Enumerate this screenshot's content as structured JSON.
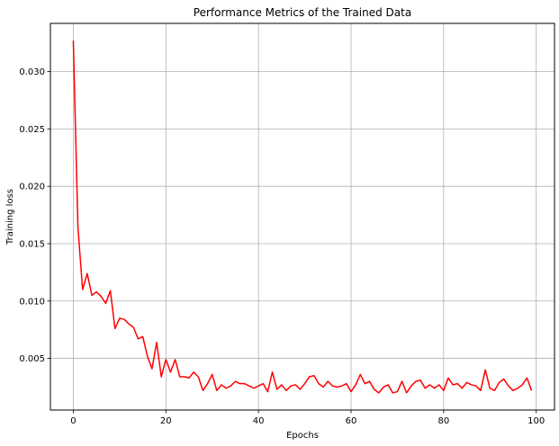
{
  "chart_data": {
    "type": "line",
    "title": "Performance Metrics of the Trained Data",
    "xlabel": "Epochs",
    "ylabel": "Training loss",
    "xlim": [
      -4.95,
      103.95
    ],
    "ylim": [
      0.0005,
      0.0342
    ],
    "x_ticks": [
      0,
      20,
      40,
      60,
      80,
      100
    ],
    "y_ticks": [
      0.005,
      0.01,
      0.015,
      0.02,
      0.025,
      0.03
    ],
    "x_tick_labels": [
      "0",
      "20",
      "40",
      "60",
      "80",
      "100"
    ],
    "y_tick_labels": [
      "0.005",
      "0.010",
      "0.015",
      "0.020",
      "0.025",
      "0.030"
    ],
    "grid": true,
    "series": [
      {
        "color": "#ff0000",
        "x": [
          0,
          1,
          2,
          3,
          4,
          5,
          6,
          7,
          8,
          9,
          10,
          11,
          12,
          13,
          14,
          15,
          16,
          17,
          18,
          19,
          20,
          21,
          22,
          23,
          24,
          25,
          26,
          27,
          28,
          29,
          30,
          31,
          32,
          33,
          34,
          35,
          36,
          37,
          38,
          39,
          40,
          41,
          42,
          43,
          44,
          45,
          46,
          47,
          48,
          49,
          50,
          51,
          52,
          53,
          54,
          55,
          56,
          57,
          58,
          59,
          60,
          61,
          62,
          63,
          64,
          65,
          66,
          67,
          68,
          69,
          70,
          71,
          72,
          73,
          74,
          75,
          76,
          77,
          78,
          79,
          80,
          81,
          82,
          83,
          84,
          85,
          86,
          87,
          88,
          89,
          90,
          91,
          92,
          93,
          94,
          95,
          96,
          97,
          98,
          99
        ],
        "values": [
          0.0327,
          0.0164,
          0.011,
          0.0124,
          0.0105,
          0.0108,
          0.0104,
          0.0098,
          0.0109,
          0.0076,
          0.0085,
          0.0084,
          0.008,
          0.0077,
          0.0067,
          0.0069,
          0.0052,
          0.0041,
          0.0064,
          0.0034,
          0.0049,
          0.0038,
          0.0049,
          0.0034,
          0.0034,
          0.0033,
          0.0038,
          0.0034,
          0.0022,
          0.0028,
          0.0036,
          0.0022,
          0.0027,
          0.0024,
          0.0026,
          0.003,
          0.0028,
          0.0028,
          0.0026,
          0.0024,
          0.0026,
          0.0028,
          0.0021,
          0.0038,
          0.0023,
          0.0027,
          0.0022,
          0.0026,
          0.0027,
          0.0023,
          0.0028,
          0.0034,
          0.0035,
          0.0028,
          0.0025,
          0.003,
          0.0026,
          0.0025,
          0.0026,
          0.0028,
          0.0021,
          0.0027,
          0.0036,
          0.0028,
          0.003,
          0.0023,
          0.002,
          0.0025,
          0.0027,
          0.002,
          0.0021,
          0.003,
          0.002,
          0.0026,
          0.003,
          0.0031,
          0.0024,
          0.0027,
          0.0024,
          0.0027,
          0.0022,
          0.0033,
          0.0027,
          0.0028,
          0.0024,
          0.0029,
          0.0027,
          0.0026,
          0.0022,
          0.004,
          0.0024,
          0.0022,
          0.0029,
          0.0032,
          0.0026,
          0.0022,
          0.0024,
          0.0027,
          0.0033,
          0.0022
        ]
      }
    ]
  }
}
